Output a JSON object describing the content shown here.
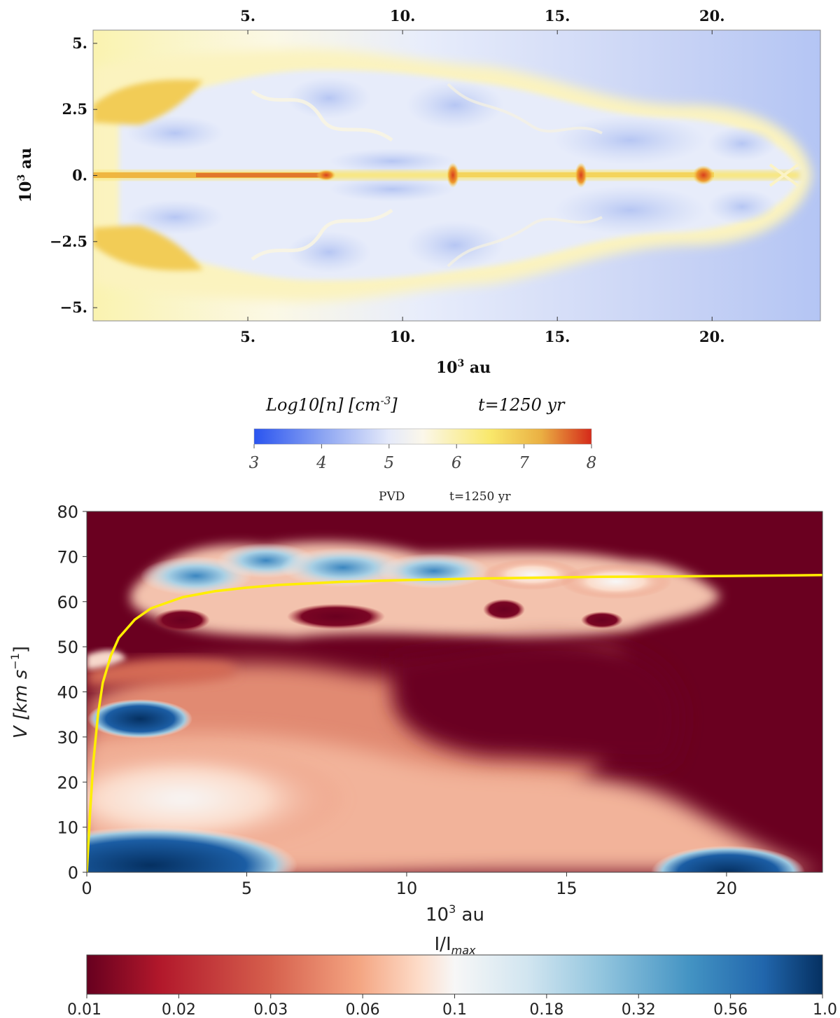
{
  "chart_data": [
    {
      "type": "heatmap",
      "title": "Log10[n] [cm^-3]    t=1250 yr",
      "colorbar_label": "Log10[n] [cm",
      "colorbar_label_sup": "-3",
      "colorbar_label_end": "]",
      "time_label": "t=1250 yr",
      "xlabel": "10",
      "xlabel_sup": "3",
      "xlabel_unit": " au",
      "ylabel": "10",
      "ylabel_sup": "3",
      "ylabel_unit": " au",
      "xlim": [
        0,
        23.5
      ],
      "ylim": [
        -5.5,
        5.5
      ],
      "x_ticks": [
        5,
        10,
        15,
        20
      ],
      "x_tick_labels": [
        "5.",
        "10.",
        "15.",
        "20."
      ],
      "y_ticks": [
        5,
        2.5,
        0,
        -2.5,
        -5
      ],
      "y_tick_labels": [
        "5.",
        "2.5",
        "0.",
        "−2.5",
        "−5."
      ],
      "colorbar_range": [
        3,
        8
      ],
      "colorbar_ticks": [
        "3",
        "4",
        "5",
        "6",
        "7",
        "8"
      ],
      "colormap": [
        "#2a54f0",
        "#c8d4f6",
        "#fbf7ea",
        "#f9e86b",
        "#e9a02c",
        "#d52a1a"
      ],
      "knots": [
        {
          "x": 7.5,
          "y": 0,
          "value": 7.8
        },
        {
          "x": 11.6,
          "y": 0,
          "value": 7.0
        },
        {
          "x": 15.8,
          "y": 0,
          "value": 6.8
        },
        {
          "x": 19.6,
          "y": 0,
          "value": 6.6
        }
      ]
    },
    {
      "type": "heatmap",
      "title": "PVD        t=1250 yr",
      "title_left": "PVD",
      "title_right": "t=1250 yr",
      "xlabel": "10",
      "xlabel_sup": "3",
      "xlabel_unit": " au",
      "ylabel": "V [km s",
      "ylabel_sup": "−1",
      "ylabel_end": "]",
      "xlim": [
        0,
        23
      ],
      "ylim": [
        0,
        80
      ],
      "x_ticks": [
        0,
        5,
        10,
        15,
        20
      ],
      "x_tick_labels": [
        "0",
        "5",
        "10",
        "15",
        "20"
      ],
      "y_ticks": [
        0,
        10,
        20,
        30,
        40,
        50,
        60,
        70,
        80
      ],
      "y_tick_labels": [
        "0",
        "10",
        "20",
        "30",
        "40",
        "50",
        "60",
        "70",
        "80"
      ],
      "colorbar_label": "I/I",
      "colorbar_label_sub": "max",
      "colorbar_ticks": [
        "0.01",
        "0.02",
        "0.03",
        "0.06",
        "0.1",
        "0.18",
        "0.32",
        "0.56",
        "1.0"
      ],
      "colormap": [
        "#67001f",
        "#b2182b",
        "#d6604d",
        "#f4a582",
        "#fddbc7",
        "#f7f7f7",
        "#d1e5f0",
        "#92c5de",
        "#4393c3",
        "#2166ac",
        "#053061"
      ],
      "background_color": "#6a0020",
      "curve_color": "#ffee00",
      "curve": {
        "x": [
          0,
          0.1,
          0.2,
          0.35,
          0.5,
          0.75,
          1,
          1.5,
          2,
          3,
          4,
          5,
          6,
          8,
          10,
          12,
          14,
          16,
          18,
          20,
          23
        ],
        "y": [
          0,
          13,
          24,
          35,
          42,
          48,
          52,
          56,
          58.5,
          61,
          62.3,
          63.1,
          63.7,
          64.4,
          64.8,
          65.1,
          65.3,
          65.5,
          65.6,
          65.7,
          65.9
        ]
      }
    }
  ]
}
